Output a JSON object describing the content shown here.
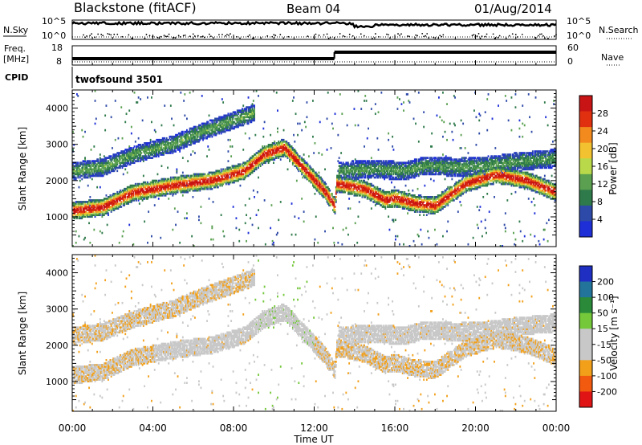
{
  "header": {
    "station": "Blackstone (fitACF)",
    "beam": "Beam 04",
    "date": "01/Aug/2014"
  },
  "status_panels": {
    "nsky_label": "N.Sky",
    "nsearch_label": "N.Search",
    "freq_label": "Freq.",
    "freq_unit": "[MHz]",
    "nave_label": "Nave",
    "cpid_label": "CPID",
    "cpid_value": "twofsound 3501",
    "noise_ticks": [
      "10^5",
      "10^0"
    ],
    "freq_ticks": [
      "18",
      "8"
    ],
    "nave_ticks": [
      "60",
      "0"
    ],
    "freq_step_time": 13.0
  },
  "colors": {
    "power": [
      "#1e2fd8",
      "#2e4aa8",
      "#2e7a4a",
      "#5aa050",
      "#b9d94a",
      "#f2c230",
      "#f28a1e",
      "#e03010",
      "#c81414"
    ],
    "velocity": [
      "#1f2fc2",
      "#23749a",
      "#2a8a3a",
      "#74c83a",
      "#c8c8c8",
      "#c8c8c8",
      "#f2a01a",
      "#f25a10",
      "#e01414"
    ]
  },
  "chart_data": [
    {
      "type": "heatmap",
      "panel": "power",
      "ylabel": "Slant Range [km]",
      "xlabel": "Time UT",
      "xlim": [
        0,
        24
      ],
      "ylim": [
        180,
        4500
      ],
      "xticks": [
        "00:00",
        "04:00",
        "08:00",
        "12:00",
        "16:00",
        "20:00",
        "00:00"
      ],
      "yticks": [
        1000,
        2000,
        3000,
        4000
      ],
      "colorbar": {
        "label": "Power [dB]",
        "ticks": [
          "4",
          "8",
          "12",
          "16",
          "20",
          "24",
          "28"
        ],
        "range": [
          0,
          30
        ]
      },
      "bands": [
        {
          "name": "main",
          "points": [
            [
              0.0,
              1150
            ],
            [
              1.5,
              1250
            ],
            [
              3.0,
              1650
            ],
            [
              5.0,
              1850
            ],
            [
              7.0,
              2000
            ],
            [
              8.5,
              2250
            ],
            [
              9.5,
              2700
            ],
            [
              10.5,
              2900
            ],
            [
              11.5,
              2300
            ],
            [
              12.5,
              1700
            ],
            [
              13.0,
              1300
            ],
            [
              13.1,
              1900
            ],
            [
              14.5,
              1750
            ],
            [
              15.5,
              1450
            ],
            [
              16.0,
              1500
            ],
            [
              17.0,
              1350
            ],
            [
              18.0,
              1300
            ],
            [
              19.5,
              1900
            ],
            [
              21.0,
              2150
            ],
            [
              22.5,
              2000
            ],
            [
              24.0,
              1650
            ]
          ],
          "width": 170,
          "peak": 27
        },
        {
          "name": "upper",
          "points": [
            [
              0.0,
              2250
            ],
            [
              1.5,
              2350
            ],
            [
              3.0,
              2700
            ],
            [
              5.0,
              3000
            ],
            [
              6.5,
              3350
            ],
            [
              8.0,
              3650
            ],
            [
              9.0,
              3850
            ]
          ],
          "width": 170,
          "peak": 10
        },
        {
          "name": "afternoon",
          "points": [
            [
              13.2,
              2250
            ],
            [
              15.0,
              2300
            ],
            [
              16.5,
              2250
            ],
            [
              17.5,
              2400
            ],
            [
              19.0,
              2350
            ],
            [
              20.5,
              2400
            ],
            [
              22.0,
              2500
            ],
            [
              24.0,
              2600
            ]
          ],
          "width": 180,
          "peak": 9
        }
      ]
    },
    {
      "type": "heatmap",
      "panel": "velocity",
      "ylabel": "Slant Range [km]",
      "xlabel": "Time UT",
      "xlim": [
        0,
        24
      ],
      "ylim": [
        180,
        4500
      ],
      "xticks": [
        "00:00",
        "04:00",
        "08:00",
        "12:00",
        "16:00",
        "20:00",
        "00:00"
      ],
      "yticks": [
        1000,
        2000,
        3000,
        4000
      ],
      "colorbar": {
        "label": "Velocity [m s⁻¹]",
        "ticks": [
          "200",
          "100",
          "50",
          "15",
          "-15",
          "-50",
          "-100",
          "-200"
        ],
        "range": [
          -250,
          250
        ]
      },
      "ground_scatter_bands": [
        "main",
        "afternoon"
      ]
    }
  ]
}
